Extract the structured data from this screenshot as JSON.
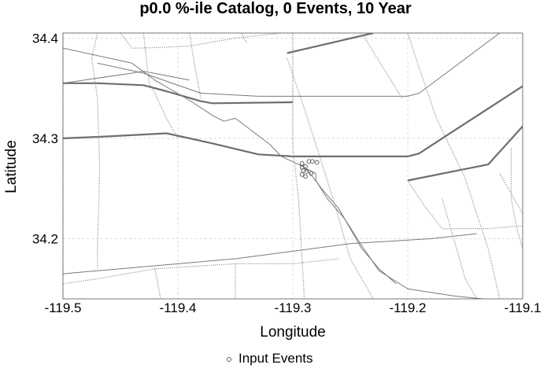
{
  "chart_data": {
    "type": "map",
    "title": "p0.0 %-ile Catalog, 0 Events, 10 Year",
    "xlabel": "Longitude",
    "ylabel": "Latitude",
    "xlim": [
      -119.5,
      -119.1
    ],
    "ylim": [
      34.14,
      34.405
    ],
    "xticks": [
      {
        "value": -119.5,
        "label": "-119.5"
      },
      {
        "value": -119.4,
        "label": "-119.4"
      },
      {
        "value": -119.3,
        "label": "-119.3"
      },
      {
        "value": -119.2,
        "label": "-119.2"
      },
      {
        "value": -119.1,
        "label": "-119.1"
      }
    ],
    "yticks": [
      {
        "value": 34.2,
        "label": "34.2"
      },
      {
        "value": 34.3,
        "label": "34.3"
      },
      {
        "value": 34.4,
        "label": "34.4"
      }
    ],
    "grid": true,
    "legend_position": "bottom-center",
    "series": [
      {
        "name": "Input Events",
        "marker": "open-circle",
        "points": [
          [
            -119.292,
            34.275
          ],
          [
            -119.286,
            34.277
          ],
          [
            -119.283,
            34.277
          ],
          [
            -119.279,
            34.276
          ],
          [
            -119.292,
            34.271
          ],
          [
            -119.289,
            34.272
          ],
          [
            -119.291,
            34.268
          ],
          [
            -119.288,
            34.267
          ],
          [
            -119.292,
            34.264
          ],
          [
            -119.289,
            34.262
          ],
          [
            -119.284,
            34.265
          ]
        ]
      }
    ],
    "fault_traces": [
      {
        "weight": "thick",
        "points": [
          [
            -119.5,
            34.355
          ],
          [
            -119.47,
            34.355
          ],
          [
            -119.43,
            34.353
          ],
          [
            -119.41,
            34.347
          ],
          [
            -119.38,
            34.337
          ],
          [
            -119.37,
            34.335
          ],
          [
            -119.3,
            34.336
          ]
        ]
      },
      {
        "weight": "thick",
        "points": [
          [
            -119.5,
            34.3
          ],
          [
            -119.46,
            34.302
          ],
          [
            -119.41,
            34.305
          ],
          [
            -119.37,
            34.295
          ],
          [
            -119.33,
            34.284
          ],
          [
            -119.3,
            34.282
          ],
          [
            -119.2,
            34.282
          ],
          [
            -119.19,
            34.285
          ],
          [
            -119.17,
            34.3
          ],
          [
            -119.1,
            34.352
          ]
        ]
      },
      {
        "weight": "thick",
        "points": [
          [
            -119.2,
            34.258
          ],
          [
            -119.13,
            34.274
          ],
          [
            -119.1,
            34.312
          ]
        ]
      },
      {
        "weight": "thick",
        "points": [
          [
            -119.305,
            34.385
          ],
          [
            -119.23,
            34.405
          ]
        ]
      },
      {
        "weight": "thin",
        "points": [
          [
            -119.5,
            34.39
          ],
          [
            -119.44,
            34.375
          ],
          [
            -119.42,
            34.358
          ],
          [
            -119.39,
            34.338
          ],
          [
            -119.37,
            34.323
          ],
          [
            -119.36,
            34.317
          ],
          [
            -119.35,
            34.32
          ],
          [
            -119.335,
            34.307
          ],
          [
            -119.32,
            34.294
          ],
          [
            -119.31,
            34.282
          ],
          [
            -119.295,
            34.274
          ],
          [
            -119.28,
            34.265
          ],
          [
            -119.28,
            34.258
          ],
          [
            -119.27,
            34.24
          ],
          [
            -119.255,
            34.22
          ],
          [
            -119.24,
            34.193
          ],
          [
            -119.225,
            34.168
          ],
          [
            -119.2,
            34.15
          ],
          [
            -119.16,
            34.143
          ],
          [
            -119.135,
            34.14
          ]
        ]
      },
      {
        "weight": "thin",
        "points": [
          [
            -119.47,
            34.375
          ],
          [
            -119.43,
            34.365
          ],
          [
            -119.38,
            34.345
          ],
          [
            -119.33,
            34.342
          ],
          [
            -119.2,
            34.342
          ],
          [
            -119.19,
            34.345
          ],
          [
            -119.12,
            34.405
          ]
        ]
      },
      {
        "weight": "thin",
        "points": [
          [
            -119.5,
            34.165
          ],
          [
            -119.45,
            34.17
          ],
          [
            -119.35,
            34.18
          ],
          [
            -119.25,
            34.195
          ],
          [
            -119.18,
            34.2
          ],
          [
            -119.14,
            34.205
          ]
        ]
      },
      {
        "weight": "thin",
        "points": [
          [
            -119.5,
            34.355
          ],
          [
            -119.44,
            34.365
          ],
          [
            -119.43,
            34.367
          ],
          [
            -119.39,
            34.358
          ]
        ]
      },
      {
        "weight": "thin",
        "points": [
          [
            -119.29,
            34.27
          ],
          [
            -119.285,
            34.265
          ],
          [
            -119.275,
            34.25
          ],
          [
            -119.26,
            34.23
          ],
          [
            -119.25,
            34.21
          ],
          [
            -119.24,
            34.19
          ],
          [
            -119.225,
            34.17
          ],
          [
            -119.21,
            34.155
          ]
        ]
      },
      {
        "weight": "dotted",
        "points": [
          [
            -119.47,
            34.405
          ],
          [
            -119.475,
            34.38
          ],
          [
            -119.47,
            34.34
          ],
          [
            -119.468,
            34.27
          ],
          [
            -119.47,
            34.19
          ],
          [
            -119.47,
            34.17
          ]
        ]
      },
      {
        "weight": "dotted",
        "points": [
          [
            -119.43,
            34.405
          ],
          [
            -119.425,
            34.355
          ],
          [
            -119.42,
            34.345
          ],
          [
            -119.41,
            34.32
          ],
          [
            -119.4,
            34.3
          ]
        ]
      },
      {
        "weight": "dotted",
        "points": [
          [
            -119.39,
            34.405
          ],
          [
            -119.385,
            34.37
          ],
          [
            -119.38,
            34.34
          ]
        ]
      },
      {
        "weight": "dotted",
        "points": [
          [
            -119.45,
            34.405
          ],
          [
            -119.44,
            34.39
          ],
          [
            -119.43,
            34.39
          ],
          [
            -119.39,
            34.392
          ],
          [
            -119.35,
            34.4
          ],
          [
            -119.31,
            34.405
          ]
        ]
      },
      {
        "weight": "dotted",
        "points": [
          [
            -119.345,
            34.405
          ],
          [
            -119.34,
            34.395
          ]
        ]
      },
      {
        "weight": "dotted",
        "points": [
          [
            -119.3,
            34.405
          ],
          [
            -119.3,
            34.29
          ],
          [
            -119.295,
            34.24
          ],
          [
            -119.29,
            34.14
          ]
        ]
      },
      {
        "weight": "dotted",
        "points": [
          [
            -119.305,
            34.38
          ],
          [
            -119.29,
            34.33
          ],
          [
            -119.265,
            34.24
          ],
          [
            -119.25,
            34.18
          ],
          [
            -119.23,
            34.14
          ]
        ]
      },
      {
        "weight": "dotted",
        "points": [
          [
            -119.2,
            34.405
          ],
          [
            -119.19,
            34.37
          ],
          [
            -119.175,
            34.32
          ],
          [
            -119.15,
            34.26
          ],
          [
            -119.13,
            34.19
          ],
          [
            -119.12,
            34.14
          ]
        ]
      },
      {
        "weight": "dotted",
        "points": [
          [
            -119.24,
            34.405
          ],
          [
            -119.205,
            34.34
          ]
        ]
      },
      {
        "weight": "dotted",
        "points": [
          [
            -119.2,
            34.258
          ],
          [
            -119.185,
            34.232
          ],
          [
            -119.17,
            34.21
          ],
          [
            -119.13,
            34.21
          ],
          [
            -119.1,
            34.213
          ]
        ]
      },
      {
        "weight": "dotted",
        "points": [
          [
            -119.17,
            34.24
          ],
          [
            -119.16,
            34.2
          ],
          [
            -119.15,
            34.16
          ],
          [
            -119.14,
            34.14
          ]
        ]
      },
      {
        "weight": "dotted",
        "points": [
          [
            -119.11,
            34.29
          ],
          [
            -119.11,
            34.24
          ],
          [
            -119.105,
            34.21
          ],
          [
            -119.1,
            34.19
          ]
        ]
      },
      {
        "weight": "dotted",
        "points": [
          [
            -119.12,
            34.265
          ],
          [
            -119.1,
            34.225
          ]
        ]
      },
      {
        "weight": "dotted",
        "points": [
          [
            -119.5,
            34.155
          ],
          [
            -119.47,
            34.16
          ],
          [
            -119.42,
            34.17
          ],
          [
            -119.35,
            34.175
          ],
          [
            -119.3,
            34.175
          ],
          [
            -119.26,
            34.18
          ]
        ]
      },
      {
        "weight": "dotted",
        "points": [
          [
            -119.42,
            34.17
          ],
          [
            -119.415,
            34.14
          ]
        ]
      },
      {
        "weight": "dotted",
        "points": [
          [
            -119.35,
            34.175
          ],
          [
            -119.35,
            34.14
          ]
        ]
      }
    ]
  },
  "legend": {
    "label": "Input Events"
  }
}
